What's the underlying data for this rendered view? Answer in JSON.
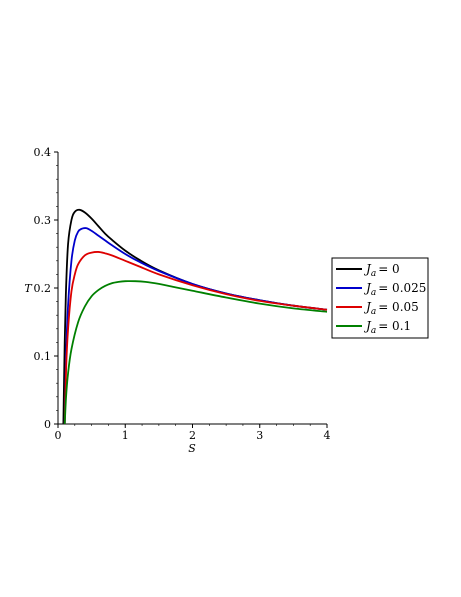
{
  "chart_data": {
    "type": "line",
    "xlabel": "S",
    "ylabel": "T",
    "xlim": [
      0,
      4
    ],
    "ylim": [
      0,
      0.4
    ],
    "xticks": [
      "0",
      "1",
      "2",
      "3",
      "4"
    ],
    "yticks": [
      "0",
      "0.1",
      "0.2",
      "0.3",
      "0.4"
    ],
    "grid": false,
    "legend_position": "right",
    "legend_label_prefix": "J",
    "legend_label_subscript": "a",
    "series": [
      {
        "name": "= 0",
        "color": "#000000",
        "x": [
          0.08,
          0.1,
          0.12,
          0.15,
          0.2,
          0.25,
          0.32,
          0.4,
          0.5,
          0.6,
          0.7,
          0.8,
          1.0,
          1.2,
          1.5,
          2.0,
          2.5,
          3.0,
          3.5,
          4.0
        ],
        "y": [
          0.0,
          0.12,
          0.2,
          0.265,
          0.3,
          0.312,
          0.315,
          0.311,
          0.302,
          0.291,
          0.28,
          0.271,
          0.255,
          0.242,
          0.226,
          0.206,
          0.192,
          0.182,
          0.174,
          0.168
        ]
      },
      {
        "name": "= 0.025",
        "color": "#0000cc",
        "x": [
          0.1,
          0.12,
          0.15,
          0.2,
          0.25,
          0.3,
          0.35,
          0.42,
          0.5,
          0.6,
          0.7,
          0.8,
          1.0,
          1.2,
          1.5,
          2.0,
          2.5,
          3.0,
          3.5,
          4.0
        ],
        "y": [
          0.0,
          0.1,
          0.175,
          0.24,
          0.27,
          0.283,
          0.287,
          0.288,
          0.284,
          0.277,
          0.27,
          0.263,
          0.25,
          0.239,
          0.225,
          0.206,
          0.192,
          0.182,
          0.174,
          0.168
        ]
      },
      {
        "name": "= 0.05",
        "color": "#dd0000",
        "x": [
          0.1,
          0.12,
          0.15,
          0.2,
          0.25,
          0.3,
          0.4,
          0.5,
          0.6,
          0.7,
          0.8,
          1.0,
          1.2,
          1.5,
          2.0,
          2.5,
          3.0,
          3.5,
          4.0
        ],
        "y": [
          0.0,
          0.08,
          0.14,
          0.195,
          0.22,
          0.235,
          0.248,
          0.252,
          0.253,
          0.251,
          0.248,
          0.24,
          0.232,
          0.22,
          0.204,
          0.191,
          0.181,
          0.174,
          0.168
        ]
      },
      {
        "name": "= 0.1",
        "color": "#008000",
        "x": [
          0.1,
          0.12,
          0.15,
          0.2,
          0.3,
          0.4,
          0.5,
          0.6,
          0.7,
          0.8,
          0.9,
          1.0,
          1.15,
          1.3,
          1.5,
          1.75,
          2.0,
          2.5,
          3.0,
          3.5,
          4.0
        ],
        "y": [
          0.0,
          0.04,
          0.075,
          0.11,
          0.15,
          0.173,
          0.188,
          0.197,
          0.203,
          0.207,
          0.209,
          0.21,
          0.21,
          0.209,
          0.206,
          0.201,
          0.196,
          0.186,
          0.177,
          0.17,
          0.165
        ]
      }
    ]
  }
}
